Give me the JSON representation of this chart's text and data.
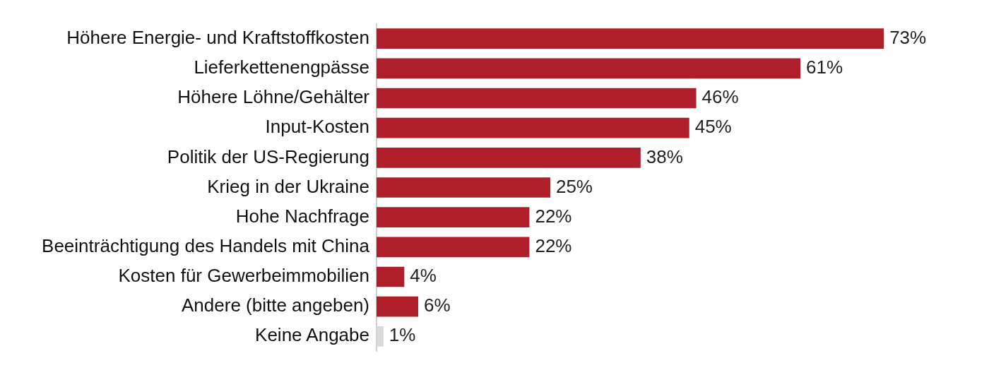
{
  "chart_data": {
    "type": "bar",
    "orientation": "horizontal",
    "categories": [
      "Höhere Energie- und Kraftstoffkosten",
      "Lieferkettenengpässe",
      "Höhere Löhne/Gehälter",
      "Input-Kosten",
      "Politik der US-Regierung",
      "Krieg in der Ukraine",
      "Hohe Nachfrage",
      "Beeinträchtigung des Handels mit China",
      "Kosten für Gewerbeimmobilien",
      "Andere (bitte angeben)",
      "Keine Angabe"
    ],
    "values": [
      73,
      61,
      46,
      45,
      38,
      25,
      22,
      22,
      4,
      6,
      1
    ],
    "value_labels": [
      "73%",
      "61%",
      "46%",
      "45%",
      "38%",
      "25%",
      "22%",
      "22%",
      "4%",
      "6%",
      "1%"
    ],
    "colors": [
      "#b01f29",
      "#b01f29",
      "#b01f29",
      "#b01f29",
      "#b01f29",
      "#b01f29",
      "#b01f29",
      "#b01f29",
      "#b01f29",
      "#b01f29",
      "#d9d9d9"
    ],
    "legend": false
  }
}
